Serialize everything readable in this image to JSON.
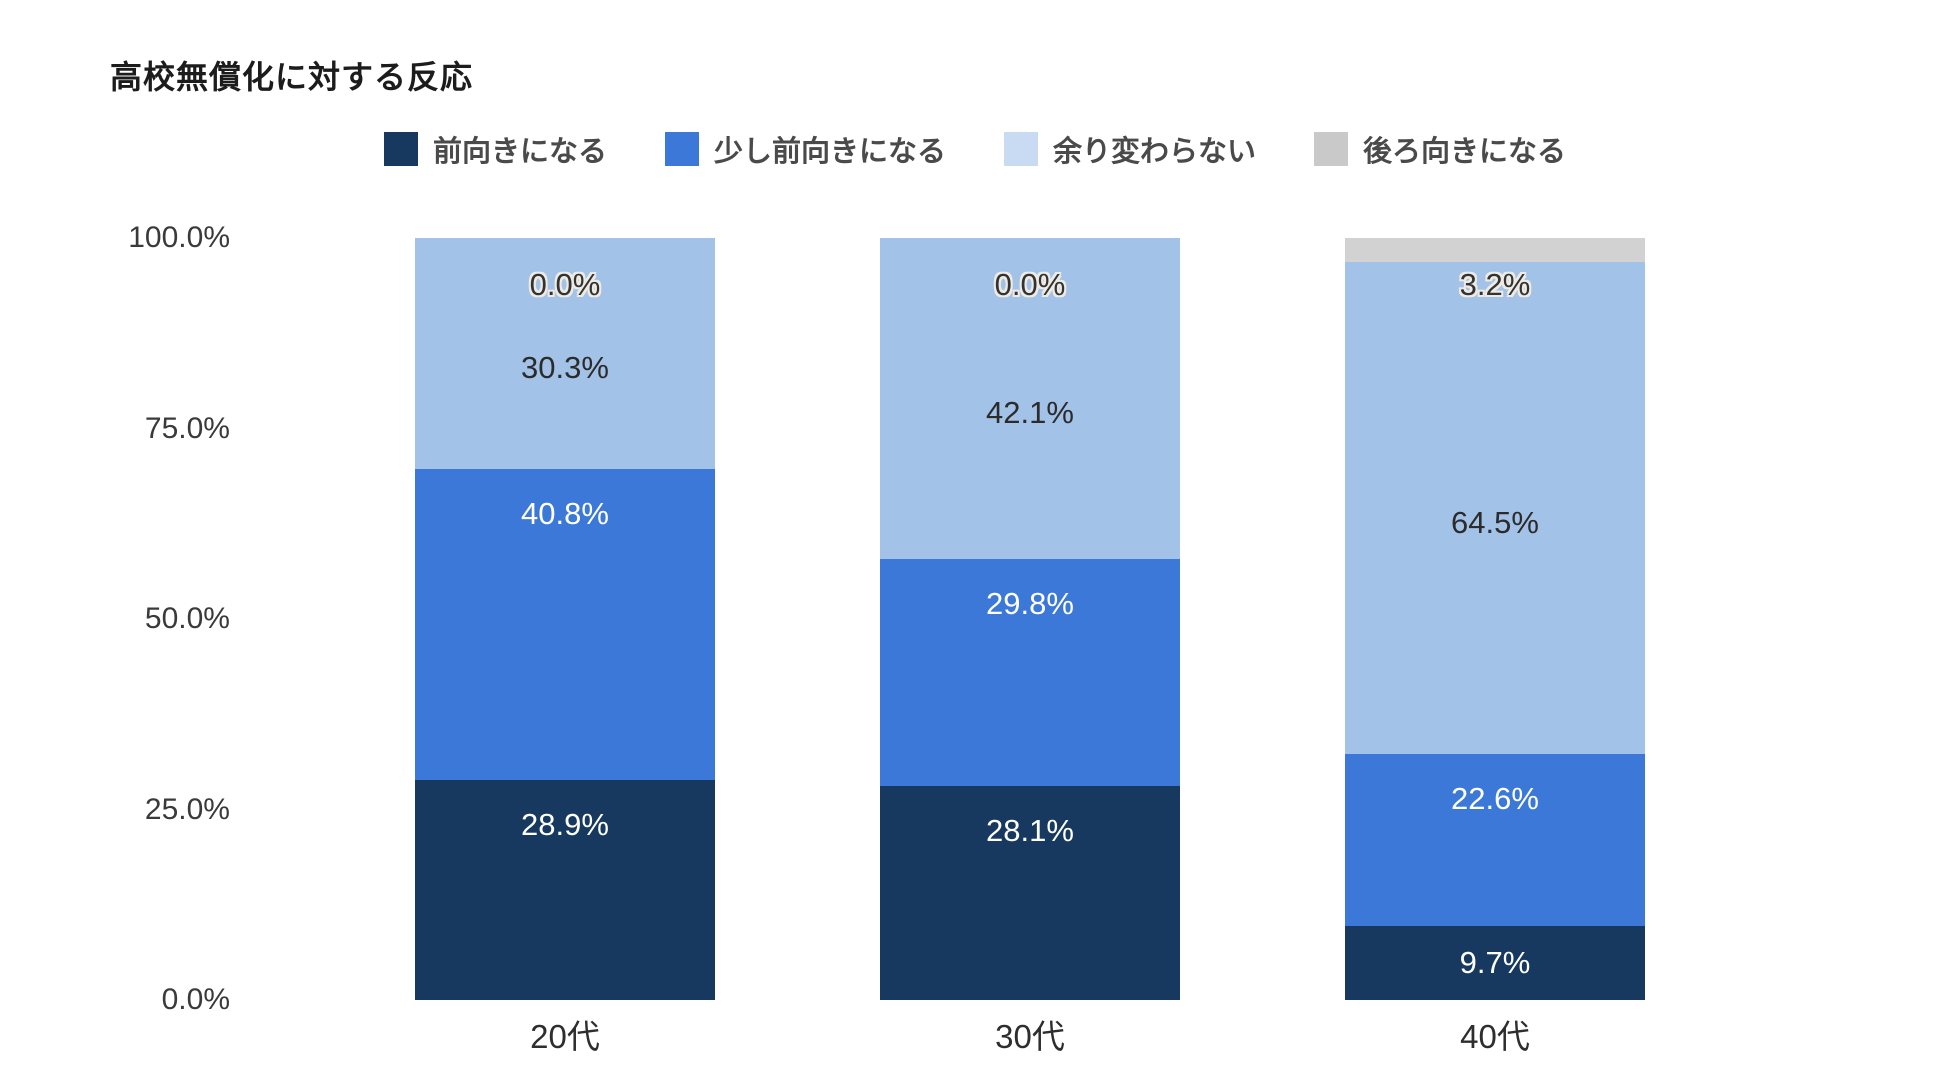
{
  "title": "高校無償化に対する反応",
  "legend": {
    "items": [
      {
        "label": "前向きになる",
        "swatch_color": "#17395f"
      },
      {
        "label": "少し前向きになる",
        "swatch_color": "#3c78d8"
      },
      {
        "label": "余り変わらない",
        "swatch_color": "#c9daf3"
      },
      {
        "label": "後ろ向きになる",
        "swatch_color": "#c9c9c9"
      }
    ]
  },
  "chart_data": {
    "type": "bar",
    "stacked": true,
    "title": "高校無償化に対する反応",
    "categories": [
      "20代",
      "30代",
      "40代"
    ],
    "series": [
      {
        "name": "前向きになる",
        "color": "#17395f",
        "label_color": "#ffffff",
        "values": [
          28.9,
          28.1,
          9.7
        ],
        "labels": [
          "28.9%",
          "28.1%",
          "9.7%"
        ]
      },
      {
        "name": "少し前向きになる",
        "color": "#3c78d8",
        "label_color": "#ffffff",
        "values": [
          40.8,
          29.8,
          22.6
        ],
        "labels": [
          "40.8%",
          "29.8%",
          "22.6%"
        ]
      },
      {
        "name": "余り変わらない",
        "color": "#a3c2e8",
        "label_color": "#2b2b2b",
        "values": [
          30.3,
          42.1,
          64.5
        ],
        "labels": [
          "30.3%",
          "42.1%",
          "64.5%"
        ]
      },
      {
        "name": "後ろ向きになる",
        "color": "#d2d2d2",
        "label_color": "#333333",
        "values": [
          0.0,
          0.0,
          3.2
        ],
        "labels": [
          "0.0%",
          "0.0%",
          "3.2%"
        ],
        "label_halo": true
      }
    ],
    "y_axis": {
      "min": 0,
      "max": 100,
      "tick_labels_top_to_bottom": [
        "100.0%",
        "75.0%",
        "50.0%",
        "25.0%",
        "0.0%"
      ]
    },
    "grid": false,
    "legend_position": "top",
    "background": "#ffffff"
  }
}
